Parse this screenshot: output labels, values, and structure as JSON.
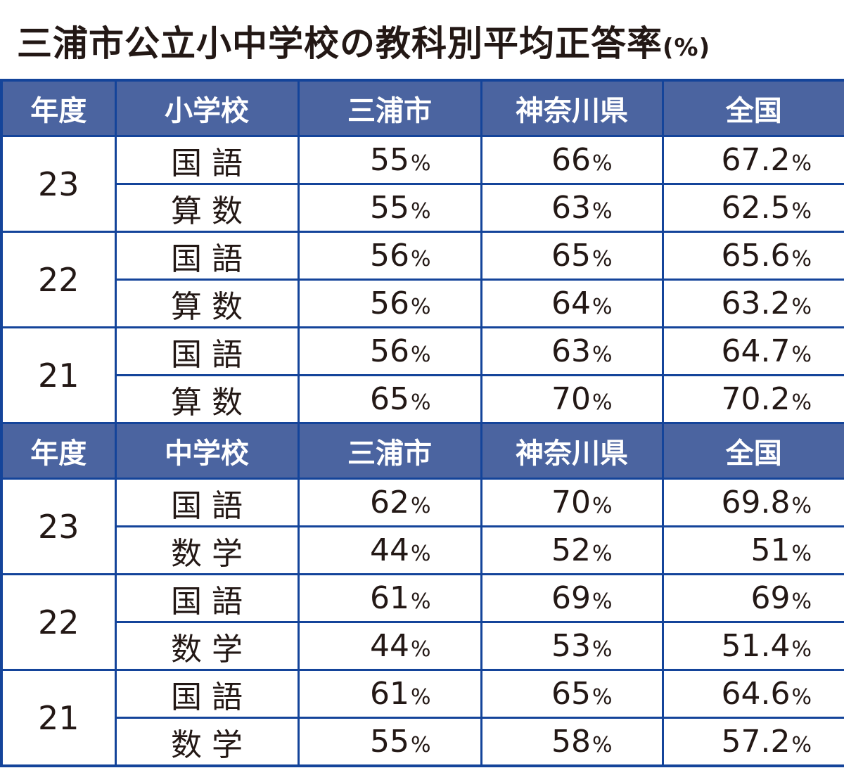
{
  "title": "三浦市公立小中学校の教科別平均正答率",
  "title_unit": "(%)",
  "colors": {
    "header_bg": "#4b64a0",
    "border": "#14449a"
  },
  "percent_sign": "%",
  "sections": [
    {
      "headers": [
        "年度",
        "小学校",
        "三浦市",
        "神奈川県",
        "全国"
      ],
      "groups": [
        {
          "year": "23",
          "rows": [
            {
              "subject": "国語",
              "miura": "55",
              "kanagawa": "66",
              "national": "67.2"
            },
            {
              "subject": "算数",
              "miura": "55",
              "kanagawa": "63",
              "national": "62.5"
            }
          ]
        },
        {
          "year": "22",
          "rows": [
            {
              "subject": "国語",
              "miura": "56",
              "kanagawa": "65",
              "national": "65.6"
            },
            {
              "subject": "算数",
              "miura": "56",
              "kanagawa": "64",
              "national": "63.2"
            }
          ]
        },
        {
          "year": "21",
          "rows": [
            {
              "subject": "国語",
              "miura": "56",
              "kanagawa": "63",
              "national": "64.7"
            },
            {
              "subject": "算数",
              "miura": "65",
              "kanagawa": "70",
              "national": "70.2"
            }
          ]
        }
      ]
    },
    {
      "headers": [
        "年度",
        "中学校",
        "三浦市",
        "神奈川県",
        "全国"
      ],
      "groups": [
        {
          "year": "23",
          "rows": [
            {
              "subject": "国語",
              "miura": "62",
              "kanagawa": "70",
              "national": "69.8"
            },
            {
              "subject": "数学",
              "miura": "44",
              "kanagawa": "52",
              "national": "51"
            }
          ]
        },
        {
          "year": "22",
          "rows": [
            {
              "subject": "国語",
              "miura": "61",
              "kanagawa": "69",
              "national": "69"
            },
            {
              "subject": "数学",
              "miura": "44",
              "kanagawa": "53",
              "national": "51.4"
            }
          ]
        },
        {
          "year": "21",
          "rows": [
            {
              "subject": "国語",
              "miura": "61",
              "kanagawa": "65",
              "national": "64.6"
            },
            {
              "subject": "数学",
              "miura": "55",
              "kanagawa": "58",
              "national": "57.2"
            }
          ]
        }
      ]
    }
  ]
}
